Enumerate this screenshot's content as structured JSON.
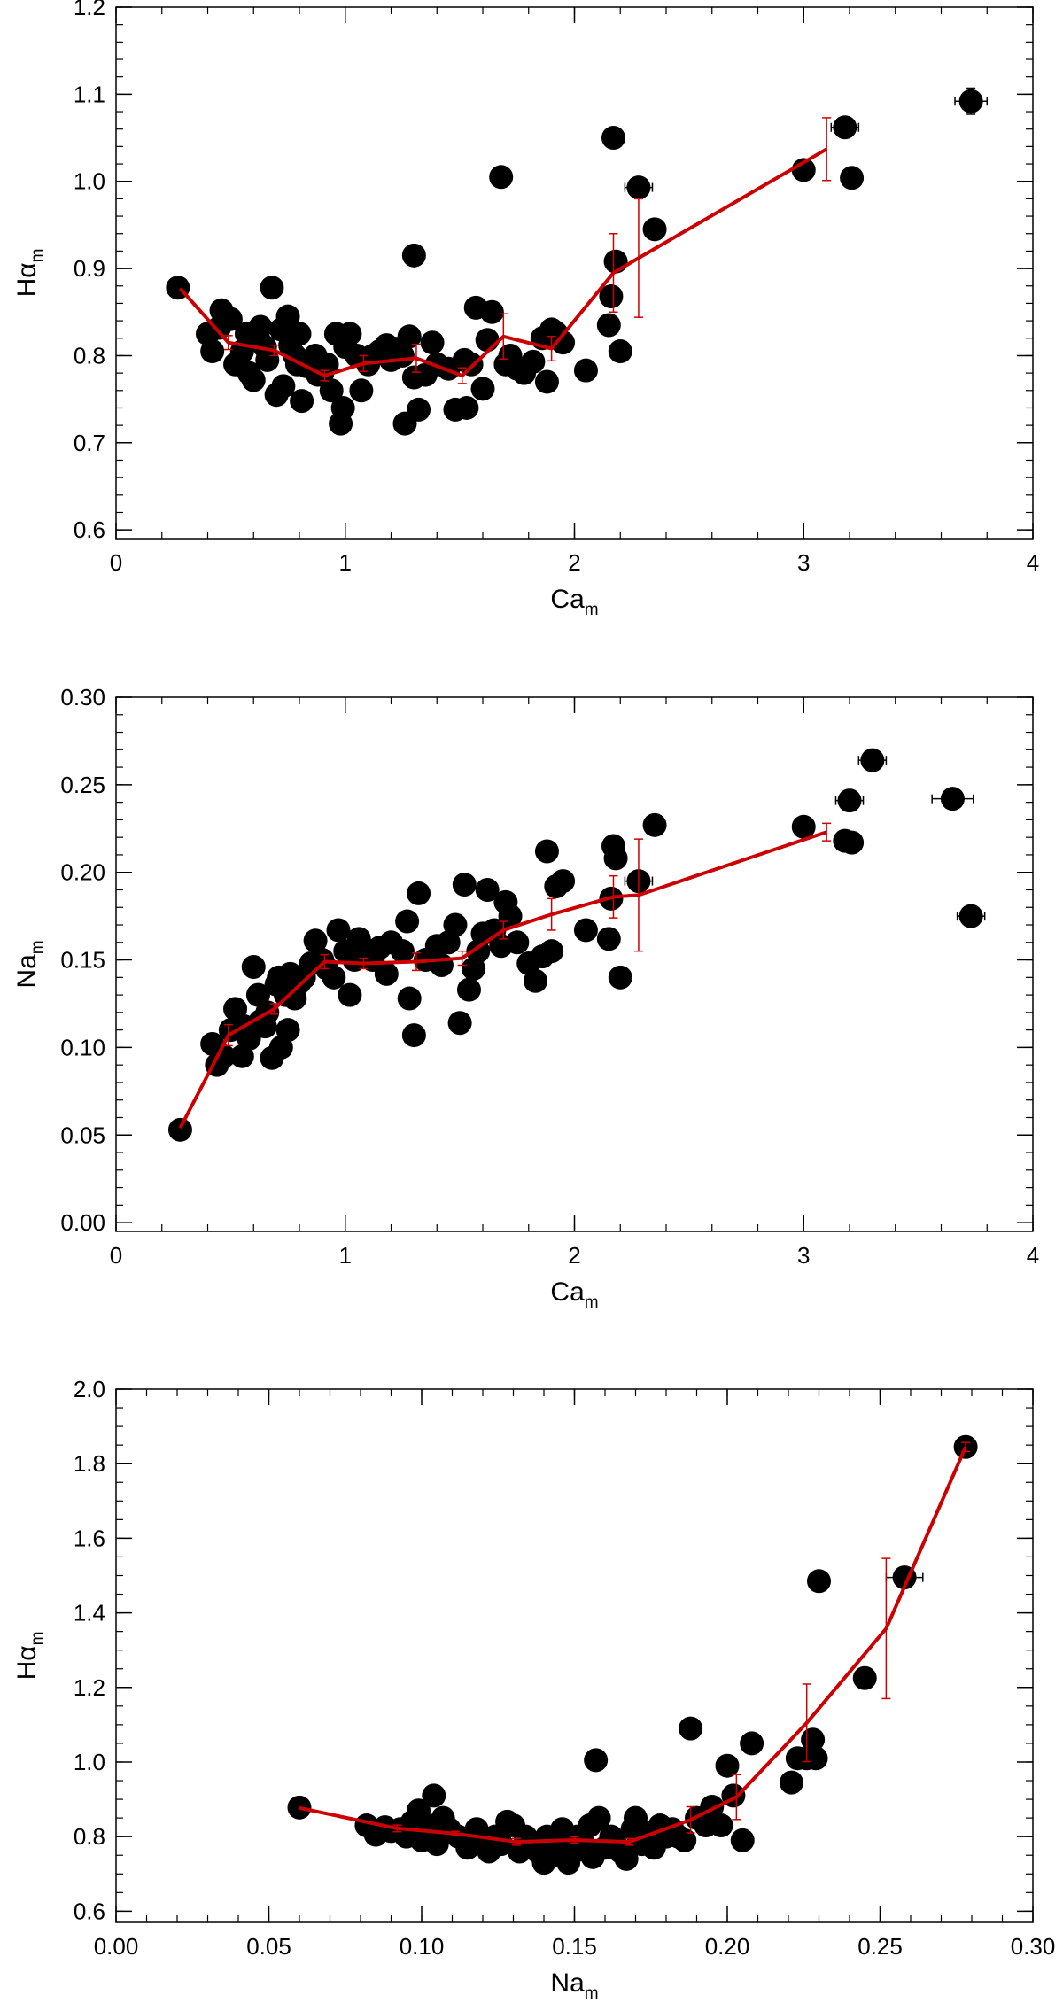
{
  "colors": {
    "points": "#000000",
    "trend": "#cc0000",
    "axes": "#000000"
  },
  "chart_data": [
    {
      "type": "scatter",
      "xlabel": "Ca",
      "xlabel_sub": "m",
      "ylabel": "Hα",
      "ylabel_sub": "m",
      "xlim": [
        0,
        4
      ],
      "ylim": [
        0.59,
        1.2
      ],
      "xticks": [
        0,
        1,
        2,
        3,
        4
      ],
      "xtick_labels": [
        "0",
        "1",
        "2",
        "3",
        "4"
      ],
      "yticks": [
        0.6,
        0.7,
        0.8,
        0.9,
        1.0,
        1.1,
        1.2
      ],
      "ytick_labels": [
        "0.6",
        "0.7",
        "0.8",
        "0.9",
        "1.0",
        "1.1",
        "1.2"
      ],
      "x_minor_step": 0.2,
      "y_minor_step": 0.02,
      "points": [
        [
          0.27,
          0.878
        ],
        [
          0.4,
          0.825
        ],
        [
          0.42,
          0.805
        ],
        [
          0.45,
          0.832
        ],
        [
          0.46,
          0.852
        ],
        [
          0.5,
          0.842
        ],
        [
          0.52,
          0.79
        ],
        [
          0.55,
          0.805
        ],
        [
          0.57,
          0.825
        ],
        [
          0.58,
          0.78
        ],
        [
          0.6,
          0.772
        ],
        [
          0.62,
          0.82
        ],
        [
          0.63,
          0.833
        ],
        [
          0.65,
          0.81
        ],
        [
          0.66,
          0.795
        ],
        [
          0.68,
          0.878
        ],
        [
          0.7,
          0.755
        ],
        [
          0.72,
          0.83
        ],
        [
          0.73,
          0.765
        ],
        [
          0.75,
          0.845
        ],
        [
          0.76,
          0.812
        ],
        [
          0.78,
          0.8
        ],
        [
          0.79,
          0.79
        ],
        [
          0.8,
          0.825
        ],
        [
          0.81,
          0.748
        ],
        [
          0.83,
          0.788
        ],
        [
          0.85,
          0.795
        ],
        [
          0.87,
          0.8
        ],
        [
          0.88,
          0.778
        ],
        [
          0.9,
          0.78
        ],
        [
          0.92,
          0.79
        ],
        [
          0.94,
          0.76
        ],
        [
          0.96,
          0.825
        ],
        [
          0.98,
          0.722
        ],
        [
          0.99,
          0.74
        ],
        [
          1.0,
          0.81
        ],
        [
          1.02,
          0.825
        ],
        [
          1.05,
          0.8
        ],
        [
          1.07,
          0.76
        ],
        [
          1.1,
          0.79
        ],
        [
          1.12,
          0.8
        ],
        [
          1.15,
          0.805
        ],
        [
          1.18,
          0.812
        ],
        [
          1.2,
          0.795
        ],
        [
          1.22,
          0.808
        ],
        [
          1.25,
          0.8
        ],
        [
          1.26,
          0.722
        ],
        [
          1.28,
          0.822
        ],
        [
          1.3,
          0.775
        ],
        [
          1.3,
          0.915
        ],
        [
          1.32,
          0.738
        ],
        [
          1.35,
          0.778
        ],
        [
          1.38,
          0.815
        ],
        [
          1.4,
          0.79
        ],
        [
          1.45,
          0.785
        ],
        [
          1.48,
          0.738
        ],
        [
          1.52,
          0.795
        ],
        [
          1.53,
          0.74
        ],
        [
          1.55,
          0.79
        ],
        [
          1.57,
          0.855
        ],
        [
          1.6,
          0.762
        ],
        [
          1.62,
          0.818
        ],
        [
          1.64,
          0.85
        ],
        [
          1.68,
          1.005
        ],
        [
          1.7,
          0.79
        ],
        [
          1.72,
          0.8
        ],
        [
          1.75,
          0.785
        ],
        [
          1.78,
          0.78
        ],
        [
          1.82,
          0.793
        ],
        [
          1.86,
          0.82
        ],
        [
          1.88,
          0.77
        ],
        [
          1.9,
          0.83
        ],
        [
          1.92,
          0.826
        ],
        [
          1.95,
          0.815
        ],
        [
          2.05,
          0.783
        ],
        [
          2.15,
          0.835
        ],
        [
          2.16,
          0.868
        ],
        [
          2.17,
          1.05
        ],
        [
          2.18,
          0.908
        ],
        [
          2.2,
          0.805
        ],
        [
          2.28,
          0.993
        ],
        [
          2.35,
          0.945
        ],
        [
          3.0,
          1.013
        ],
        [
          3.18,
          1.062
        ],
        [
          3.21,
          1.004
        ],
        [
          3.73,
          1.092
        ]
      ],
      "x_error_points": [
        [
          2.28,
          0.993,
          0.06
        ],
        [
          3.18,
          1.062,
          0.06
        ],
        [
          3.73,
          1.092,
          0.07
        ]
      ],
      "y_error_points": [
        [
          3.73,
          1.092,
          0.015
        ]
      ],
      "trend": {
        "x": [
          0.28,
          0.49,
          0.69,
          0.91,
          1.08,
          1.31,
          1.51,
          1.69,
          1.9,
          2.17,
          2.28,
          3.1
        ],
        "y": [
          0.877,
          0.815,
          0.806,
          0.777,
          0.791,
          0.797,
          0.777,
          0.822,
          0.808,
          0.895,
          0.912,
          1.037
        ],
        "err": [
          0,
          0.008,
          0.006,
          0.006,
          0.009,
          0.016,
          0.009,
          0.026,
          0.014,
          0.045,
          0.068,
          0.036
        ]
      }
    },
    {
      "type": "scatter",
      "xlabel": "Ca",
      "xlabel_sub": "m",
      "ylabel": "Na",
      "ylabel_sub": "m",
      "xlim": [
        0,
        4
      ],
      "ylim": [
        -0.005,
        0.3
      ],
      "xticks": [
        0,
        1,
        2,
        3,
        4
      ],
      "xtick_labels": [
        "0",
        "1",
        "2",
        "3",
        "4"
      ],
      "yticks": [
        0.0,
        0.05,
        0.1,
        0.15,
        0.2,
        0.25,
        0.3
      ],
      "ytick_labels": [
        "0.00",
        "0.05",
        "0.10",
        "0.15",
        "0.20",
        "0.25",
        "0.30"
      ],
      "x_minor_step": 0.2,
      "y_minor_step": 0.01,
      "points": [
        [
          0.28,
          0.053
        ],
        [
          0.42,
          0.102
        ],
        [
          0.44,
          0.09
        ],
        [
          0.47,
          0.095
        ],
        [
          0.5,
          0.11
        ],
        [
          0.52,
          0.122
        ],
        [
          0.55,
          0.095
        ],
        [
          0.56,
          0.112
        ],
        [
          0.58,
          0.105
        ],
        [
          0.6,
          0.146
        ],
        [
          0.62,
          0.13
        ],
        [
          0.63,
          0.115
        ],
        [
          0.65,
          0.112
        ],
        [
          0.66,
          0.12
        ],
        [
          0.68,
          0.094
        ],
        [
          0.7,
          0.136
        ],
        [
          0.71,
          0.14
        ],
        [
          0.72,
          0.1
        ],
        [
          0.74,
          0.13
        ],
        [
          0.75,
          0.11
        ],
        [
          0.76,
          0.142
        ],
        [
          0.78,
          0.128
        ],
        [
          0.8,
          0.137
        ],
        [
          0.82,
          0.14
        ],
        [
          0.85,
          0.148
        ],
        [
          0.87,
          0.161
        ],
        [
          0.9,
          0.15
        ],
        [
          0.92,
          0.145
        ],
        [
          0.95,
          0.14
        ],
        [
          0.97,
          0.167
        ],
        [
          1.0,
          0.155
        ],
        [
          1.02,
          0.13
        ],
        [
          1.04,
          0.15
        ],
        [
          1.06,
          0.162
        ],
        [
          1.1,
          0.155
        ],
        [
          1.12,
          0.15
        ],
        [
          1.15,
          0.157
        ],
        [
          1.18,
          0.142
        ],
        [
          1.2,
          0.16
        ],
        [
          1.25,
          0.155
        ],
        [
          1.27,
          0.172
        ],
        [
          1.28,
          0.128
        ],
        [
          1.3,
          0.107
        ],
        [
          1.32,
          0.188
        ],
        [
          1.35,
          0.15
        ],
        [
          1.4,
          0.158
        ],
        [
          1.42,
          0.147
        ],
        [
          1.45,
          0.16
        ],
        [
          1.48,
          0.17
        ],
        [
          1.5,
          0.114
        ],
        [
          1.52,
          0.193
        ],
        [
          1.54,
          0.133
        ],
        [
          1.56,
          0.145
        ],
        [
          1.58,
          0.155
        ],
        [
          1.6,
          0.165
        ],
        [
          1.62,
          0.19
        ],
        [
          1.65,
          0.167
        ],
        [
          1.68,
          0.158
        ],
        [
          1.7,
          0.183
        ],
        [
          1.72,
          0.175
        ],
        [
          1.75,
          0.16
        ],
        [
          1.8,
          0.148
        ],
        [
          1.83,
          0.138
        ],
        [
          1.86,
          0.152
        ],
        [
          1.88,
          0.212
        ],
        [
          1.9,
          0.155
        ],
        [
          1.92,
          0.192
        ],
        [
          1.95,
          0.195
        ],
        [
          2.05,
          0.167
        ],
        [
          2.15,
          0.162
        ],
        [
          2.16,
          0.185
        ],
        [
          2.17,
          0.215
        ],
        [
          2.18,
          0.208
        ],
        [
          2.2,
          0.14
        ],
        [
          2.28,
          0.195
        ],
        [
          2.35,
          0.227
        ],
        [
          3.0,
          0.226
        ],
        [
          3.18,
          0.218
        ],
        [
          3.2,
          0.241
        ],
        [
          3.21,
          0.217
        ],
        [
          3.3,
          0.264
        ],
        [
          3.65,
          0.242
        ],
        [
          3.73,
          0.175
        ]
      ],
      "x_error_points": [
        [
          2.28,
          0.195,
          0.06
        ],
        [
          3.2,
          0.241,
          0.06
        ],
        [
          3.3,
          0.264,
          0.06
        ],
        [
          3.65,
          0.242,
          0.09
        ],
        [
          3.73,
          0.175,
          0.06
        ]
      ],
      "y_error_points": [],
      "trend": {
        "x": [
          0.28,
          0.49,
          0.69,
          0.91,
          1.08,
          1.31,
          1.51,
          1.69,
          1.9,
          2.17,
          2.28,
          3.1
        ],
        "y": [
          0.054,
          0.107,
          0.122,
          0.149,
          0.148,
          0.149,
          0.151,
          0.167,
          0.176,
          0.186,
          0.187,
          0.223
        ],
        "err": [
          0,
          0.006,
          0.003,
          0.004,
          0.003,
          0.005,
          0.004,
          0.005,
          0.009,
          0.012,
          0.032,
          0.005
        ]
      }
    },
    {
      "type": "scatter",
      "xlabel": "Na",
      "xlabel_sub": "m",
      "ylabel": "Hα",
      "ylabel_sub": "m",
      "xlim": [
        0,
        0.3
      ],
      "ylim": [
        0.57,
        2.0
      ],
      "xticks": [
        0.0,
        0.05,
        0.1,
        0.15,
        0.2,
        0.25,
        0.3
      ],
      "xtick_labels": [
        "0.00",
        "0.05",
        "0.10",
        "0.15",
        "0.20",
        "0.25",
        "0.30"
      ],
      "yticks": [
        0.6,
        0.8,
        1.0,
        1.2,
        1.4,
        1.6,
        1.8,
        2.0
      ],
      "ytick_labels": [
        "0.6",
        "0.8",
        "1.0",
        "1.2",
        "1.4",
        "1.6",
        "1.8",
        "2.0"
      ],
      "x_minor_step": 0.01,
      "y_minor_step": 0.05,
      "points": [
        [
          0.06,
          0.878
        ],
        [
          0.082,
          0.83
        ],
        [
          0.085,
          0.805
        ],
        [
          0.088,
          0.825
        ],
        [
          0.09,
          0.815
        ],
        [
          0.093,
          0.82
        ],
        [
          0.095,
          0.8
        ],
        [
          0.097,
          0.84
        ],
        [
          0.099,
          0.87
        ],
        [
          0.1,
          0.79
        ],
        [
          0.102,
          0.83
        ],
        [
          0.104,
          0.91
        ],
        [
          0.105,
          0.78
        ],
        [
          0.107,
          0.85
        ],
        [
          0.109,
          0.82
        ],
        [
          0.112,
          0.8
        ],
        [
          0.115,
          0.77
        ],
        [
          0.118,
          0.82
        ],
        [
          0.12,
          0.79
        ],
        [
          0.122,
          0.76
        ],
        [
          0.124,
          0.8
        ],
        [
          0.126,
          0.78
        ],
        [
          0.128,
          0.84
        ],
        [
          0.13,
          0.83
        ],
        [
          0.132,
          0.76
        ],
        [
          0.134,
          0.8
        ],
        [
          0.136,
          0.78
        ],
        [
          0.138,
          0.76
        ],
        [
          0.14,
          0.73
        ],
        [
          0.141,
          0.8
        ],
        [
          0.143,
          0.75
        ],
        [
          0.145,
          0.79
        ],
        [
          0.146,
          0.82
        ],
        [
          0.148,
          0.73
        ],
        [
          0.15,
          0.76
        ],
        [
          0.151,
          0.8
        ],
        [
          0.153,
          0.78
        ],
        [
          0.155,
          0.83
        ],
        [
          0.156,
          0.745
        ],
        [
          0.157,
          1.005
        ],
        [
          0.158,
          0.85
        ],
        [
          0.16,
          0.77
        ],
        [
          0.162,
          0.8
        ],
        [
          0.163,
          0.79
        ],
        [
          0.165,
          0.76
        ],
        [
          0.167,
          0.74
        ],
        [
          0.169,
          0.82
        ],
        [
          0.17,
          0.85
        ],
        [
          0.172,
          0.78
        ],
        [
          0.174,
          0.81
        ],
        [
          0.176,
          0.77
        ],
        [
          0.178,
          0.83
        ],
        [
          0.18,
          0.8
        ],
        [
          0.182,
          0.82
        ],
        [
          0.184,
          0.8
        ],
        [
          0.186,
          0.79
        ],
        [
          0.188,
          1.09
        ],
        [
          0.19,
          0.85
        ],
        [
          0.193,
          0.83
        ],
        [
          0.195,
          0.88
        ],
        [
          0.198,
          0.83
        ],
        [
          0.2,
          0.99
        ],
        [
          0.202,
          0.91
        ],
        [
          0.205,
          0.79
        ],
        [
          0.208,
          1.05
        ],
        [
          0.221,
          0.945
        ],
        [
          0.223,
          1.01
        ],
        [
          0.226,
          1.01
        ],
        [
          0.228,
          1.06
        ],
        [
          0.229,
          1.01
        ],
        [
          0.23,
          1.485
        ],
        [
          0.245,
          1.225
        ],
        [
          0.258,
          1.495
        ],
        [
          0.278,
          1.845
        ]
      ],
      "x_error_points": [
        [
          0.258,
          1.495,
          0.006
        ]
      ],
      "y_error_points": [],
      "trend": {
        "x": [
          0.06,
          0.092,
          0.111,
          0.131,
          0.15,
          0.168,
          0.188,
          0.203,
          0.226,
          0.252,
          0.278
        ],
        "y": [
          0.877,
          0.822,
          0.808,
          0.786,
          0.791,
          0.786,
          0.845,
          0.906,
          1.105,
          1.358,
          1.845
        ],
        "err": [
          0,
          0.009,
          0.006,
          0.009,
          0.008,
          0.009,
          0.035,
          0.06,
          0.104,
          0.188,
          0.012
        ]
      }
    }
  ]
}
